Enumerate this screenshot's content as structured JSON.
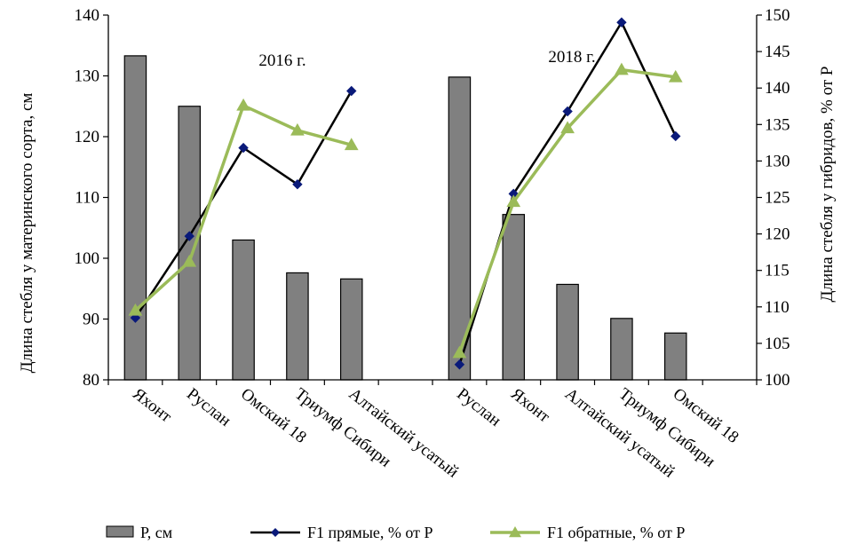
{
  "chart_data": {
    "type": "bar",
    "groups": [
      {
        "label": "2016 г.",
        "categories": [
          "Яхонт",
          "Руслан",
          "Омский 18",
          "Триумф Сибири",
          "Алтайский усатый"
        ]
      },
      {
        "label": "2018 г.",
        "categories": [
          "Руслан",
          "Яхонт",
          "Алтайский усатый",
          "Триумф Сибири",
          "Омский 18"
        ]
      }
    ],
    "series": [
      {
        "name": "Р, см",
        "type": "bar",
        "axis": "left",
        "color": "#808080",
        "values": [
          [
            133.3,
            125.0,
            103.0,
            97.6,
            96.6
          ],
          [
            129.8,
            107.2,
            95.7,
            90.1,
            87.7
          ]
        ]
      },
      {
        "name": "F1 прямые, % от Р",
        "type": "line",
        "axis": "right",
        "color": "#000000",
        "marker": "diamond",
        "marker_color": "#0a1a7a",
        "values": [
          [
            108.5,
            119.7,
            131.8,
            126.8,
            139.6
          ],
          [
            102.1,
            125.5,
            136.8,
            149.0,
            133.4
          ]
        ]
      },
      {
        "name": "F1 обратные, % от Р",
        "type": "line",
        "axis": "right",
        "color": "#9bbb59",
        "marker": "triangle",
        "marker_color": "#9bbb59",
        "values": [
          [
            109.5,
            116.2,
            137.6,
            134.2,
            132.2
          ],
          [
            103.7,
            124.4,
            134.5,
            142.5,
            141.5
          ]
        ]
      }
    ],
    "ylabel_left": "Длина стебля у материнского сорта, см",
    "ylabel_right": "Длина стебля у гибридов, % от Р",
    "ylim_left": [
      80,
      140
    ],
    "yticks_left": [
      80,
      90,
      100,
      110,
      120,
      130,
      140
    ],
    "ylim_right": [
      100,
      150
    ],
    "yticks_right": [
      100,
      105,
      110,
      115,
      120,
      125,
      130,
      135,
      140,
      145,
      150
    ],
    "grid": false,
    "legend_position": "bottom"
  }
}
